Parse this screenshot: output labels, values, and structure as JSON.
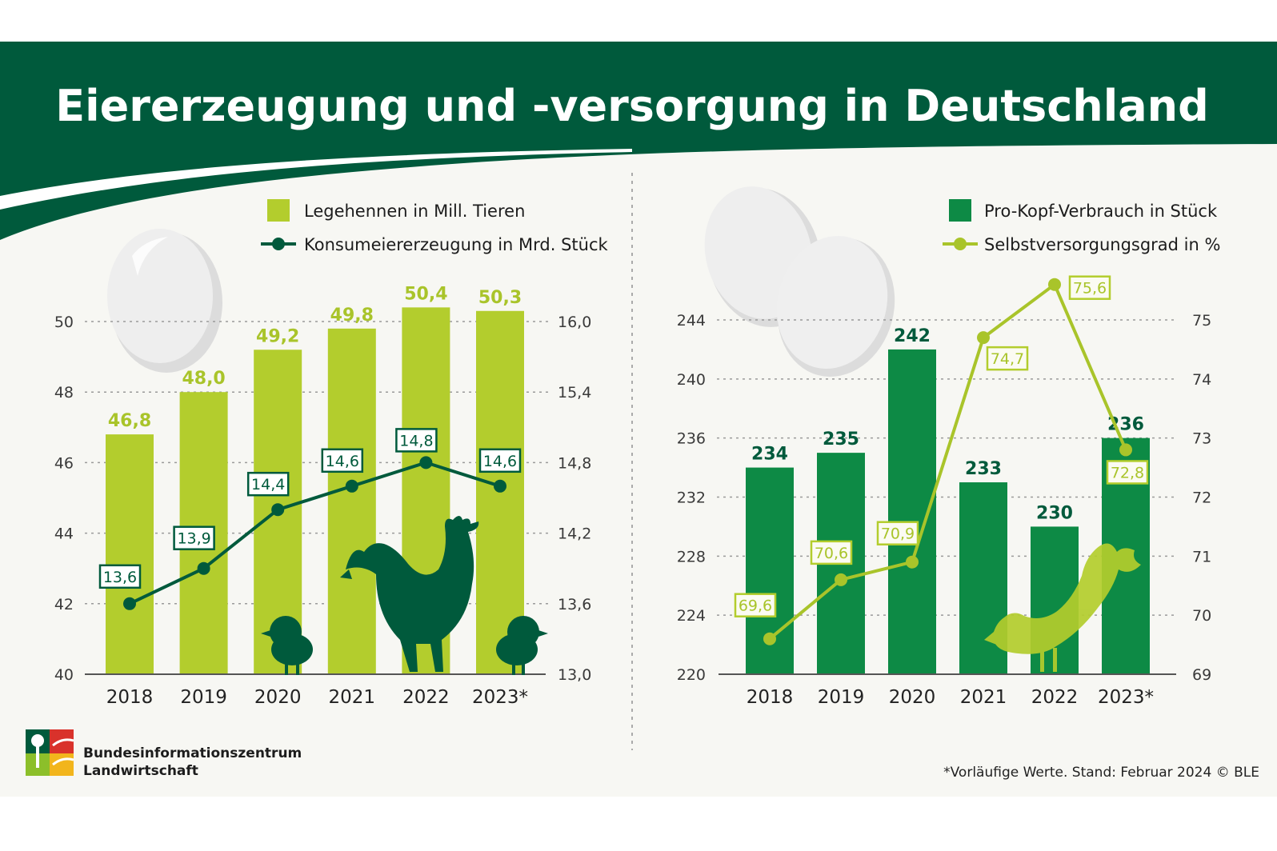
{
  "title": "Eiererzeugung und -versorgung in Deutschland",
  "colors": {
    "dark_green": "#005a3c",
    "mid_green": "#0d8a45",
    "lime": "#b3cd2d",
    "lime_line": "#a9c42a",
    "panel_bg": "#f7f7f3"
  },
  "logo_text": [
    "Bundesinformationszentrum",
    "Landwirtschaft"
  ],
  "footnote": "*Vorläufige Werte. Stand: Februar 2024 © BLE",
  "chart_data": [
    {
      "type": "bar",
      "categories": [
        "2018",
        "2019",
        "2020",
        "2021",
        "2022",
        "2023*"
      ],
      "series": [
        {
          "name": "Legehennen in Mill. Tieren",
          "type": "bar",
          "axis": "left",
          "values": [
            46.8,
            48.0,
            49.2,
            49.8,
            50.4,
            50.3
          ],
          "labels": [
            "46,8",
            "48,0",
            "49,2",
            "49,8",
            "50,4",
            "50,3"
          ],
          "color": "#b3cd2d"
        },
        {
          "name": "Konsumeiererzeugung in Mrd. Stück",
          "type": "line",
          "axis": "right",
          "values": [
            13.6,
            13.9,
            14.4,
            14.6,
            14.8,
            14.6
          ],
          "labels": [
            "13,6",
            "13,9",
            "14,4",
            "14,6",
            "14,8",
            "14,6"
          ],
          "color": "#005a3c"
        }
      ],
      "ylim_left": [
        40,
        50
      ],
      "yticks_left": [
        "40",
        "42",
        "44",
        "46",
        "48",
        "50"
      ],
      "ylim_right": [
        13.0,
        16.0
      ],
      "yticks_right": [
        "13,0",
        "13,6",
        "14,2",
        "14,8",
        "15,4",
        "16,0"
      ],
      "grid": true,
      "legend_position": "top-right"
    },
    {
      "type": "bar",
      "categories": [
        "2018",
        "2019",
        "2020",
        "2021",
        "2022",
        "2023*"
      ],
      "series": [
        {
          "name": "Pro-Kopf-Verbrauch in Stück",
          "type": "bar",
          "axis": "left",
          "values": [
            234,
            235,
            242,
            233,
            230,
            236
          ],
          "labels": [
            "234",
            "235",
            "242",
            "233",
            "230",
            "236"
          ],
          "color": "#0d8a45"
        },
        {
          "name": "Selbstversorgungsgrad in %",
          "type": "line",
          "axis": "right",
          "values": [
            69.6,
            70.6,
            70.9,
            74.7,
            75.6,
            72.8
          ],
          "labels": [
            "69,6",
            "70,6",
            "70,9",
            "74,7",
            "75,6",
            "72,8"
          ],
          "color": "#a9c42a"
        }
      ],
      "ylim_left": [
        220,
        244
      ],
      "yticks_left": [
        "220",
        "224",
        "228",
        "232",
        "236",
        "240",
        "244"
      ],
      "ylim_right": [
        69,
        75
      ],
      "yticks_right": [
        "69",
        "70",
        "71",
        "72",
        "73",
        "74",
        "75"
      ],
      "grid": true,
      "legend_position": "top-right"
    }
  ]
}
